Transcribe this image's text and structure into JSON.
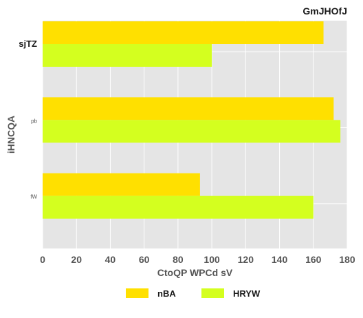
{
  "chart_data": {
    "type": "bar",
    "orientation": "horizontal",
    "title": "GmJHOfJ",
    "xlabel": "CtoQP WPCd sV",
    "ylabel": "iHNCQA",
    "categories": [
      "sjTZ",
      "pb",
      "fW"
    ],
    "series": [
      {
        "name": "nBA",
        "values": [
          166,
          172,
          93
        ],
        "color": "#ffe000"
      },
      {
        "name": "HRYW",
        "values": [
          100,
          176,
          160
        ],
        "color": "#d4ff1f"
      }
    ],
    "xlim": [
      0,
      180
    ],
    "xticks": [
      0,
      20,
      40,
      60,
      80,
      100,
      120,
      140,
      160,
      180
    ],
    "grid": true,
    "background": "#e5e5e5",
    "legend_position": "bottom"
  }
}
